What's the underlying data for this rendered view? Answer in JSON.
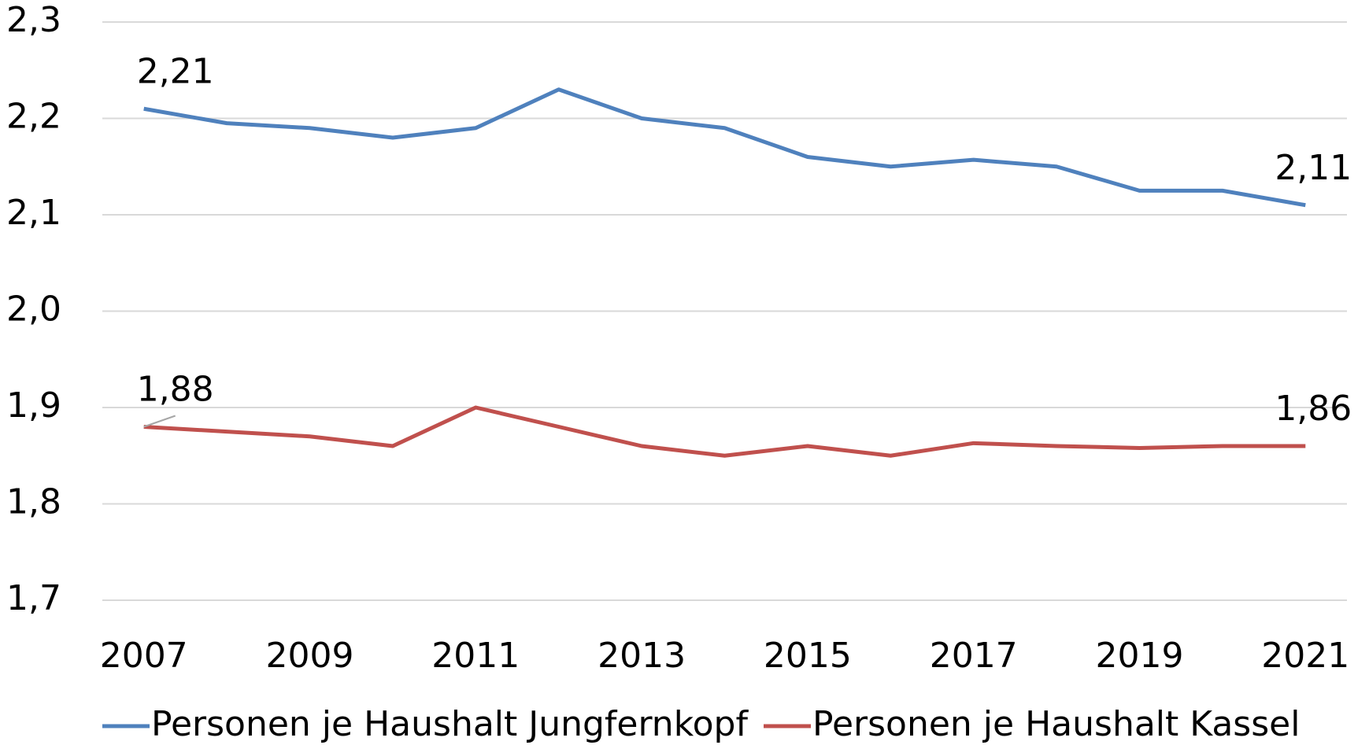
{
  "chart_data": {
    "type": "line",
    "x": [
      2007,
      2008,
      2009,
      2010,
      2011,
      2012,
      2013,
      2014,
      2015,
      2016,
      2017,
      2018,
      2019,
      2020,
      2021
    ],
    "series": [
      {
        "name": "Personen je Haushalt Jungfernkopf",
        "color": "#4f81bd",
        "values": [
          2.21,
          2.195,
          2.19,
          2.18,
          2.19,
          2.23,
          2.2,
          2.19,
          2.16,
          2.15,
          2.157,
          2.15,
          2.125,
          2.125,
          2.11
        ],
        "value_labels": [
          "2,21",
          null,
          null,
          null,
          null,
          null,
          null,
          null,
          null,
          null,
          null,
          null,
          null,
          null,
          "2,11"
        ]
      },
      {
        "name": "Personen je Haushalt Kassel",
        "color": "#c0504d",
        "values": [
          1.88,
          1.875,
          1.87,
          1.86,
          1.9,
          1.88,
          1.86,
          1.85,
          1.86,
          1.85,
          1.863,
          1.86,
          1.858,
          1.86,
          1.86
        ],
        "value_labels": [
          "1,88",
          null,
          null,
          null,
          null,
          null,
          null,
          null,
          null,
          null,
          null,
          null,
          null,
          null,
          "1,86"
        ]
      }
    ],
    "xlim": [
      2006.5,
      2021.5
    ],
    "xticks": [
      2007,
      2009,
      2011,
      2013,
      2015,
      2017,
      2019,
      2021
    ],
    "ylim": [
      1.7,
      2.3
    ],
    "yticks": [
      {
        "value": 1.7,
        "label": "1,7"
      },
      {
        "value": 1.8,
        "label": "1,8"
      },
      {
        "value": 1.9,
        "label": "1,9"
      },
      {
        "value": 2.0,
        "label": "2,0"
      },
      {
        "value": 2.1,
        "label": "2,1"
      },
      {
        "value": 2.2,
        "label": "2,2"
      },
      {
        "value": 2.3,
        "label": "2,3"
      }
    ],
    "grid": true,
    "legend": "bottom"
  }
}
